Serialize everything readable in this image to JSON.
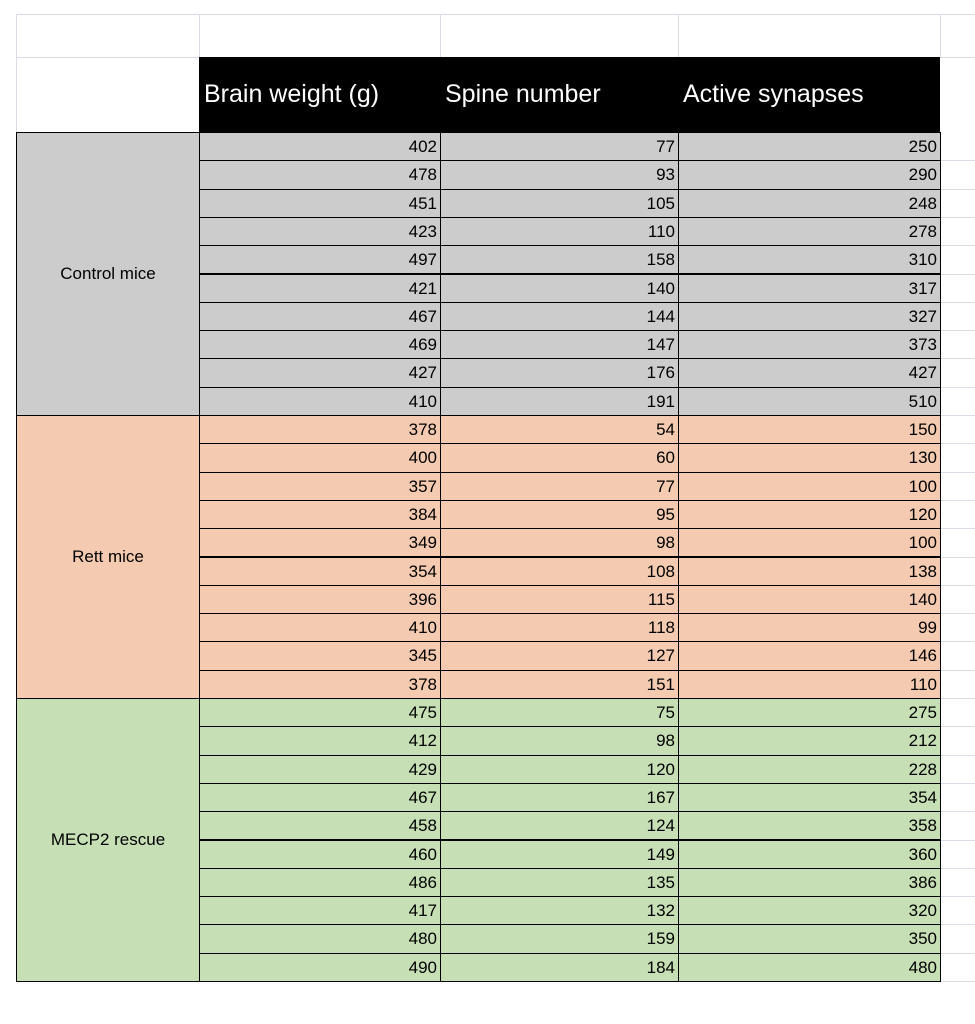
{
  "table": {
    "columns": [
      "Brain weight (g)",
      "Spine number",
      "Active synapses"
    ],
    "groups": [
      {
        "label": "Control mice",
        "color": "#cccccc",
        "rows": [
          [
            402,
            77,
            250
          ],
          [
            478,
            93,
            290
          ],
          [
            451,
            105,
            248
          ],
          [
            423,
            110,
            278
          ],
          [
            497,
            158,
            310
          ],
          [
            421,
            140,
            317
          ],
          [
            467,
            144,
            327
          ],
          [
            469,
            147,
            373
          ],
          [
            427,
            176,
            427
          ],
          [
            410,
            191,
            510
          ]
        ]
      },
      {
        "label": "Rett mice",
        "color": "#f4cbb0",
        "rows": [
          [
            378,
            54,
            150
          ],
          [
            400,
            60,
            130
          ],
          [
            357,
            77,
            100
          ],
          [
            384,
            95,
            120
          ],
          [
            349,
            98,
            100
          ],
          [
            354,
            108,
            138
          ],
          [
            396,
            115,
            140
          ],
          [
            410,
            118,
            99
          ],
          [
            345,
            127,
            146
          ],
          [
            378,
            151,
            110
          ]
        ]
      },
      {
        "label": "MECP2 rescue",
        "color": "#c6dfb5",
        "rows": [
          [
            475,
            75,
            275
          ],
          [
            412,
            98,
            212
          ],
          [
            429,
            120,
            228
          ],
          [
            467,
            167,
            354
          ],
          [
            458,
            124,
            358
          ],
          [
            460,
            149,
            360
          ],
          [
            486,
            135,
            386
          ],
          [
            417,
            132,
            320
          ],
          [
            480,
            159,
            350
          ],
          [
            490,
            184,
            480
          ]
        ]
      }
    ]
  }
}
